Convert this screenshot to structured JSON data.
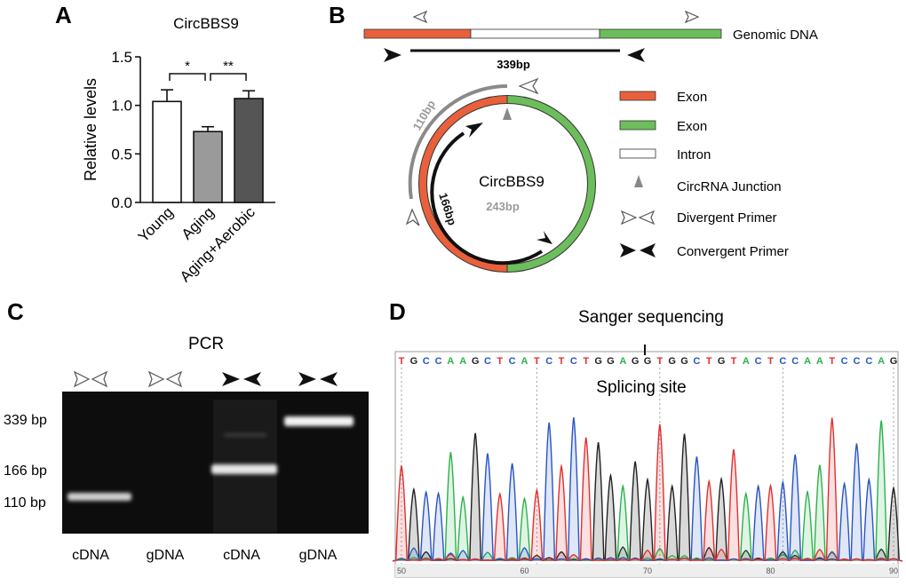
{
  "panel_a": {
    "letter": "A",
    "chart_data": {
      "type": "bar",
      "title": "CircBBS9",
      "ylabel": "Relative levels",
      "xlabel": "",
      "categories": [
        "Young",
        "Aging",
        "Aging+Aerobic"
      ],
      "values": [
        1.04,
        0.73,
        1.07
      ],
      "errors": [
        0.12,
        0.05,
        0.08
      ],
      "colors": [
        "#ffffff",
        "#9a9a9a",
        "#555555"
      ],
      "ylim": [
        0,
        1.5
      ],
      "yticks": [
        "0.0",
        "0.5",
        "1.0",
        "1.5"
      ],
      "ytick_values": [
        0,
        0.5,
        1.0,
        1.5
      ],
      "significance": [
        {
          "from": 0,
          "to": 1,
          "label": "*"
        },
        {
          "from": 1,
          "to": 2,
          "label": "**"
        }
      ]
    }
  },
  "panel_b": {
    "letter": "B",
    "genomic_label": "Genomic DNA",
    "product_label": "339bp",
    "circle_label": "CircBBS9",
    "circle_size": "243bp",
    "arc_outer_label": "110bp",
    "arc_inner_label": "166bp",
    "colors": {
      "exon_1": "#e8613c",
      "exon_2": "#6cbd5b",
      "intron": "#ffffff"
    },
    "legend": [
      {
        "label": "Exon"
      },
      {
        "label": "Exon"
      },
      {
        "label": "Intron"
      },
      {
        "label": "CircRNA Junction"
      },
      {
        "label": "Divergent Primer"
      },
      {
        "label": "Convergent Primer"
      }
    ]
  },
  "panel_c": {
    "letter": "C",
    "title": "PCR",
    "size_labels": [
      "339 bp",
      "166 bp",
      "110 bp"
    ],
    "lanes": [
      "cDNA",
      "gDNA",
      "cDNA",
      "gDNA"
    ]
  },
  "panel_d": {
    "letter": "D",
    "title": "Sanger sequencing",
    "annotation": "Splicing site",
    "sequence": "TGCCAAGCTCATCTCTGGAGGTGGCTGTACTCCAATCCCAG",
    "axis_ticks": [
      "50",
      "60",
      "70",
      "80",
      "90"
    ],
    "base_colors": {
      "A": "#2bb24c",
      "C": "#2855c4",
      "G": "#222222",
      "T": "#e03030"
    }
  }
}
